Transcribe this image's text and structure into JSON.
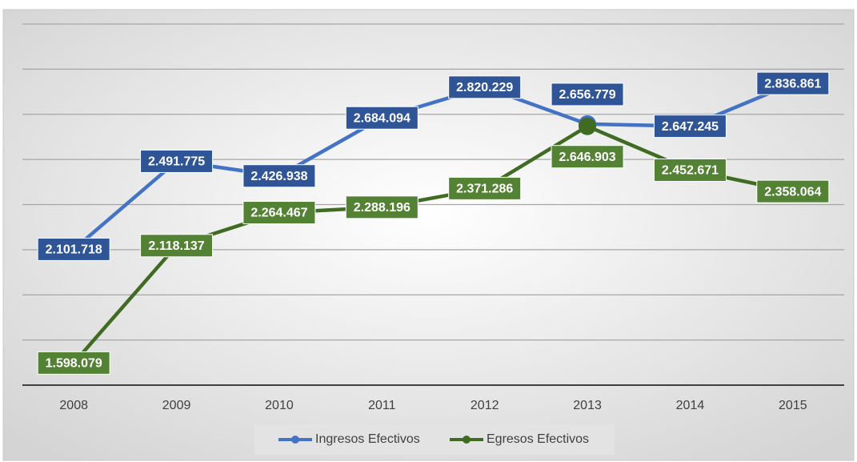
{
  "chart_data": {
    "type": "line",
    "categories": [
      "2008",
      "2009",
      "2010",
      "2011",
      "2012",
      "2013",
      "2014",
      "2015"
    ],
    "series": [
      {
        "name": "Ingresos Efectivos",
        "color": "#4472c4",
        "label_color": "#2f5597",
        "values": [
          2101718,
          2491775,
          2426938,
          2684094,
          2820229,
          2656779,
          2647245,
          2836861
        ],
        "value_labels": [
          "2.101.718",
          "2.491.775",
          "2.426.938",
          "2.684.094",
          "2.820.229",
          "2.656.779",
          "2.647.245",
          "2.836.861"
        ]
      },
      {
        "name": "Egresos Efectivos",
        "color": "#3f6b22",
        "label_color": "#548235",
        "values": [
          1598079,
          2118137,
          2264467,
          2288196,
          2371286,
          2646903,
          2452671,
          2358064
        ],
        "value_labels": [
          "1.598.079",
          "2.118.137",
          "2.264.467",
          "2.288.196",
          "2.371.286",
          "2.646.903",
          "2.452.671",
          "2.358.064"
        ]
      }
    ],
    "ylim": [
      1500000,
      3100000
    ],
    "yticks": [
      1500000,
      1700000,
      1900000,
      2100000,
      2300000,
      2500000,
      2700000,
      2900000,
      3100000
    ],
    "grid": true,
    "legend": "bottom"
  }
}
